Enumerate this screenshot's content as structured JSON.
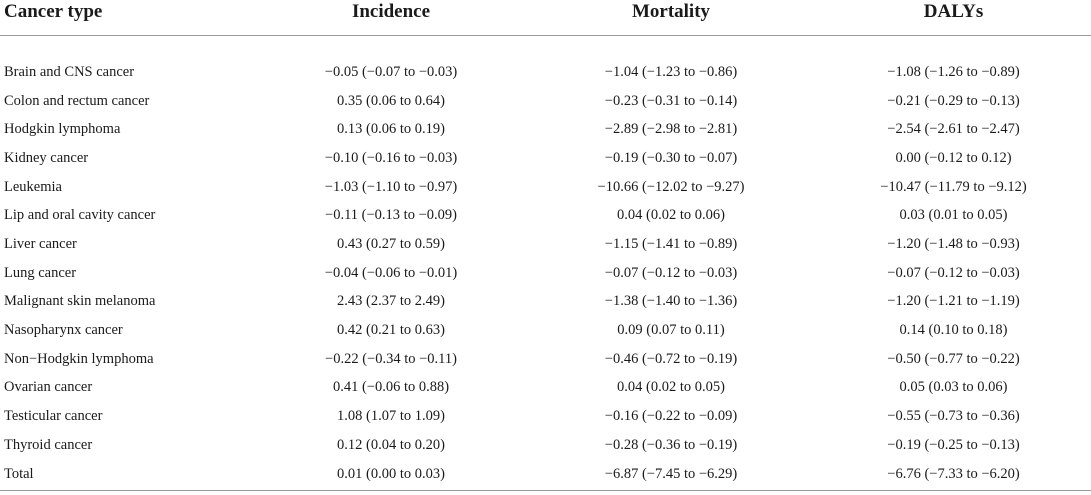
{
  "table": {
    "headers": [
      "Cancer type",
      "Incidence",
      "Mortality",
      "DALYs"
    ],
    "rows": [
      [
        "Brain and CNS cancer",
        "−0.05 (−0.07 to −0.03)",
        "−1.04 (−1.23 to −0.86)",
        "−1.08 (−1.26 to −0.89)"
      ],
      [
        "Colon and rectum cancer",
        "0.35 (0.06 to 0.64)",
        "−0.23 (−0.31 to −0.14)",
        "−0.21 (−0.29 to −0.13)"
      ],
      [
        "Hodgkin lymphoma",
        "0.13 (0.06 to 0.19)",
        "−2.89 (−2.98 to −2.81)",
        "−2.54 (−2.61 to −2.47)"
      ],
      [
        "Kidney cancer",
        "−0.10 (−0.16 to −0.03)",
        "−0.19 (−0.30 to −0.07)",
        "0.00 (−0.12 to 0.12)"
      ],
      [
        "Leukemia",
        "−1.03 (−1.10 to −0.97)",
        "−10.66 (−12.02 to −9.27)",
        "−10.47 (−11.79 to −9.12)"
      ],
      [
        "Lip and oral cavity cancer",
        "−0.11 (−0.13 to −0.09)",
        "0.04 (0.02 to 0.06)",
        "0.03 (0.01 to 0.05)"
      ],
      [
        "Liver cancer",
        "0.43 (0.27 to 0.59)",
        "−1.15 (−1.41 to −0.89)",
        "−1.20 (−1.48 to −0.93)"
      ],
      [
        "Lung cancer",
        "−0.04 (−0.06 to −0.01)",
        "−0.07 (−0.12 to −0.03)",
        "−0.07 (−0.12 to −0.03)"
      ],
      [
        "Malignant skin melanoma",
        "2.43 (2.37 to 2.49)",
        "−1.38 (−1.40 to −1.36)",
        "−1.20 (−1.21 to −1.19)"
      ],
      [
        "Nasopharynx cancer",
        "0.42 (0.21 to 0.63)",
        "0.09 (0.07 to 0.11)",
        "0.14 (0.10 to 0.18)"
      ],
      [
        "Non−Hodgkin lymphoma",
        "−0.22 (−0.34 to −0.11)",
        "−0.46 (−0.72 to −0.19)",
        "−0.50 (−0.77 to −0.22)"
      ],
      [
        "Ovarian cancer",
        "0.41 (−0.06 to 0.88)",
        "0.04 (0.02 to 0.05)",
        "0.05 (0.03 to 0.06)"
      ],
      [
        "Testicular cancer",
        "1.08 (1.07 to 1.09)",
        "−0.16 (−0.22 to −0.09)",
        "−0.55 (−0.73 to −0.36)"
      ],
      [
        "Thyroid cancer",
        "0.12 (0.04 to 0.20)",
        "−0.28 (−0.36 to −0.19)",
        "−0.19 (−0.25 to −0.13)"
      ],
      [
        "Total",
        "0.01 (0.00 to 0.03)",
        "−6.87 (−7.45 to −6.29)",
        "−6.76 (−7.33 to −6.20)"
      ]
    ]
  }
}
